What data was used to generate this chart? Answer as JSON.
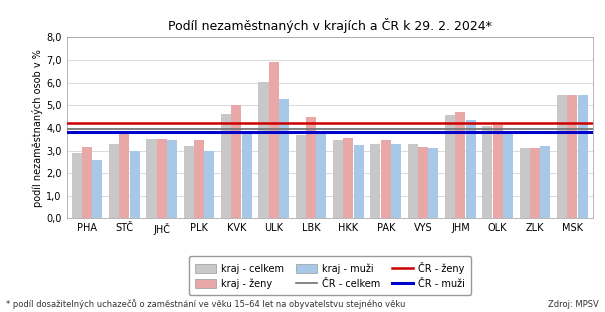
{
  "title": "Podíl nezaměstnaných v krajích a ČR k 29. 2. 2024*",
  "ylabel": "podíl nezaměstnaných osob v %",
  "categories": [
    "PHA",
    "STČ",
    "JHČ",
    "PLK",
    "KVK",
    "ULK",
    "LBK",
    "HKK",
    "PAK",
    "VYS",
    "JHM",
    "OLK",
    "ZLK",
    "MSK"
  ],
  "celkem": [
    2.9,
    3.3,
    3.5,
    3.2,
    4.6,
    6.05,
    3.7,
    3.45,
    3.3,
    3.3,
    4.55,
    4.1,
    3.1,
    5.45
  ],
  "zeny": [
    3.15,
    3.8,
    3.5,
    3.45,
    5.0,
    6.9,
    4.5,
    3.55,
    3.45,
    3.15,
    4.7,
    4.15,
    3.1,
    5.45
  ],
  "muzi": [
    2.6,
    3.0,
    3.45,
    3.0,
    3.85,
    5.3,
    3.85,
    3.25,
    3.3,
    3.1,
    4.35,
    3.85,
    3.2,
    5.45
  ],
  "cr_celkem": 3.97,
  "cr_zeny": 4.2,
  "cr_muzi": 3.8,
  "color_celkem": "#c8c8c8",
  "color_zeny": "#e8a8a8",
  "color_muzi": "#a8c8e8",
  "color_cr_celkem": "#707070",
  "color_cr_zeny": "#cc0000",
  "color_cr_muzi": "#0000cc",
  "ylim": [
    0.0,
    8.0
  ],
  "yticks": [
    0.0,
    1.0,
    2.0,
    3.0,
    4.0,
    5.0,
    6.0,
    7.0,
    8.0
  ],
  "ytick_labels": [
    "0,0",
    "1,0",
    "2,0",
    "3,0",
    "4,0",
    "5,0",
    "6,0",
    "7,0",
    "8,0"
  ],
  "footnote": "* podíl dosažitelných uchazečů o zaměstnání ve věku 15–64 let na obyvatelstvu stejného věku",
  "source": "Zdroj: MPSV",
  "background_color": "#ffffff"
}
